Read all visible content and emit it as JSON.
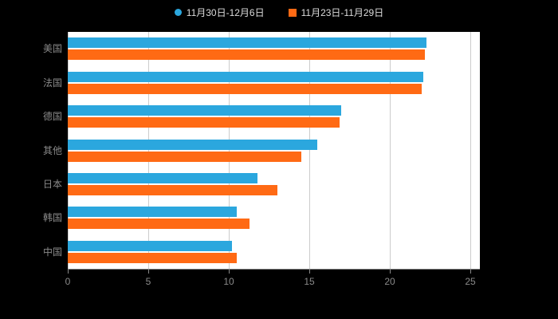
{
  "legend": {
    "items": [
      {
        "label": "11月30日-12月6日",
        "color": "#2BA7DE",
        "marker": "circle"
      },
      {
        "label": "11月23日-11月29日",
        "color": "#FF6A14",
        "marker": "square"
      }
    ]
  },
  "chart_data": {
    "type": "bar",
    "orientation": "horizontal",
    "title": "",
    "categories": [
      "美国",
      "法国",
      "德国",
      "其他",
      "日本",
      "韩国",
      "中国"
    ],
    "series": [
      {
        "name": "11月30日-12月6日",
        "color": "#2BA7DE",
        "values": [
          22.3,
          22.1,
          17.0,
          15.5,
          11.8,
          10.5,
          10.2
        ]
      },
      {
        "name": "11月23日-11月29日",
        "color": "#FF6A14",
        "values": [
          22.2,
          22.0,
          16.9,
          14.5,
          13.0,
          11.3,
          10.5
        ]
      }
    ],
    "xlim": [
      0,
      25
    ],
    "xticks": [
      0,
      5,
      10,
      15,
      20,
      25
    ],
    "grid": true,
    "legend_position": "top"
  },
  "colors": {
    "background": "#000000",
    "plot_background": "#ffffff",
    "gridline": "#cccccc",
    "axis": "#888888",
    "label_text": "#8a8a8a",
    "legend_text": "#dddddd"
  }
}
